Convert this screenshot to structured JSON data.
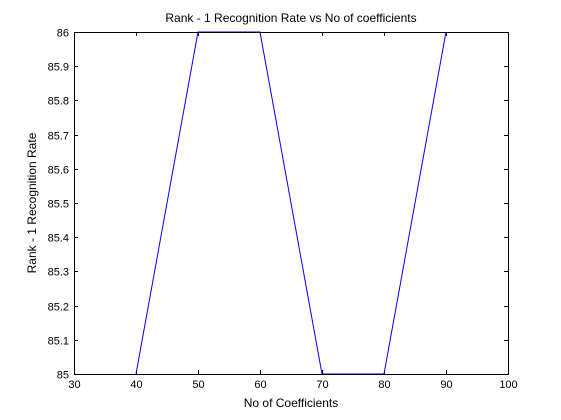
{
  "chart_data": {
    "type": "line",
    "title": "Rank - 1 Recognition Rate vs No of coefficients",
    "xlabel": "No of Coefficients",
    "ylabel": "Rank - 1 Recognition Rate",
    "xlim": [
      30,
      100
    ],
    "ylim": [
      85,
      86
    ],
    "x_ticks": [
      30,
      40,
      50,
      60,
      70,
      80,
      90,
      100
    ],
    "y_ticks": [
      85,
      85.1,
      85.2,
      85.3,
      85.4,
      85.5,
      85.6,
      85.7,
      85.8,
      85.9,
      86
    ],
    "x_tick_labels": [
      "30",
      "40",
      "50",
      "60",
      "70",
      "80",
      "90",
      "100"
    ],
    "y_tick_labels": [
      "85",
      "85.1",
      "85.2",
      "85.3",
      "85.4",
      "85.5",
      "85.6",
      "85.7",
      "85.8",
      "85.9",
      "86"
    ],
    "grid": false,
    "series": [
      {
        "color": "#0000ff",
        "x": [
          40,
          50,
          60,
          70,
          80,
          90
        ],
        "y": [
          85,
          86,
          86,
          85,
          85,
          86
        ]
      }
    ]
  }
}
